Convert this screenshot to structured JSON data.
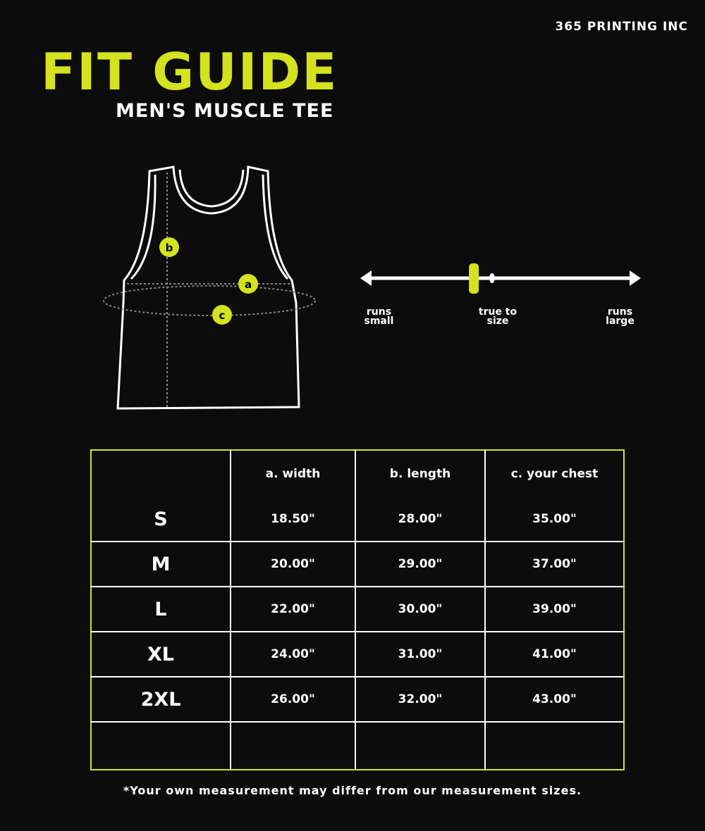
{
  "brand": "365 PRINTING INC",
  "title": "FIT GUIDE",
  "subtitle": "MEN'S MUSCLE TEE",
  "diagram": {
    "labels": {
      "a": "a",
      "b": "b",
      "c": "c"
    }
  },
  "fit_scale": {
    "left": "runs small",
    "middle": "true to size",
    "right": "runs large",
    "marker_fraction": 0.385,
    "accent": "#d4e21f"
  },
  "table": {
    "headers": [
      "",
      "a. width",
      "b. length",
      "c. your chest"
    ],
    "rows": [
      [
        "S",
        "18.50\"",
        "28.00\"",
        "35.00\""
      ],
      [
        "M",
        "20.00\"",
        "29.00\"",
        "37.00\""
      ],
      [
        "L",
        "22.00\"",
        "30.00\"",
        "39.00\""
      ],
      [
        "XL",
        "24.00\"",
        "31.00\"",
        "41.00\""
      ],
      [
        "2XL",
        "26.00\"",
        "32.00\"",
        "43.00\""
      ],
      [
        "",
        "",
        "",
        ""
      ]
    ]
  },
  "note": "*Your own measurement may differ from our measurement sizes."
}
